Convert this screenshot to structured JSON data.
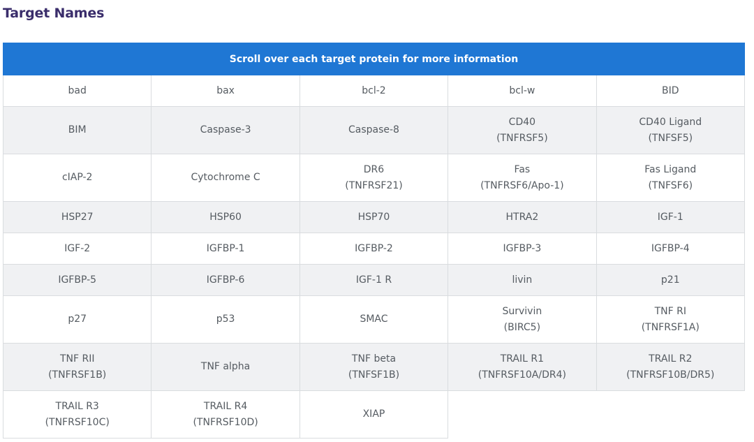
{
  "page": {
    "title": "Target Names"
  },
  "table": {
    "header": "Scroll over each target protein for more information",
    "rows": [
      [
        [
          "bad"
        ],
        [
          "bax"
        ],
        [
          "bcl-2"
        ],
        [
          "bcl-w"
        ],
        [
          "BID"
        ]
      ],
      [
        [
          "BIM"
        ],
        [
          "Caspase-3"
        ],
        [
          "Caspase-8"
        ],
        [
          "CD40",
          "(TNFRSF5)"
        ],
        [
          "CD40 Ligand",
          "(TNFSF5)"
        ]
      ],
      [
        [
          "cIAP-2"
        ],
        [
          "Cytochrome C"
        ],
        [
          "DR6",
          "(TNFRSF21)"
        ],
        [
          "Fas",
          "(TNFRSF6/Apo-1)"
        ],
        [
          "Fas Ligand",
          "(TNFSF6)"
        ]
      ],
      [
        [
          "HSP27"
        ],
        [
          "HSP60"
        ],
        [
          "HSP70"
        ],
        [
          "HTRA2"
        ],
        [
          "IGF-1"
        ]
      ],
      [
        [
          "IGF-2"
        ],
        [
          "IGFBP-1"
        ],
        [
          "IGFBP-2"
        ],
        [
          "IGFBP-3"
        ],
        [
          "IGFBP-4"
        ]
      ],
      [
        [
          "IGFBP-5"
        ],
        [
          "IGFBP-6"
        ],
        [
          "IGF-1 R"
        ],
        [
          "livin"
        ],
        [
          "p21"
        ]
      ],
      [
        [
          "p27"
        ],
        [
          "p53"
        ],
        [
          "SMAC"
        ],
        [
          "Survivin",
          "(BIRC5)"
        ],
        [
          "TNF RI",
          "(TNFRSF1A)"
        ]
      ],
      [
        [
          "TNF RII",
          "(TNFRSF1B)"
        ],
        [
          "TNF alpha"
        ],
        [
          "TNF beta",
          "(TNFSF1B)"
        ],
        [
          "TRAIL R1",
          "(TNFRSF10A/DR4)"
        ],
        [
          "TRAIL R2",
          "(TNFRSF10B/DR5)"
        ]
      ],
      [
        [
          "TRAIL R3",
          "(TNFRSF10C)"
        ],
        [
          "TRAIL R4",
          "(TNFRSF10D)"
        ],
        [
          "XIAP"
        ]
      ]
    ]
  }
}
